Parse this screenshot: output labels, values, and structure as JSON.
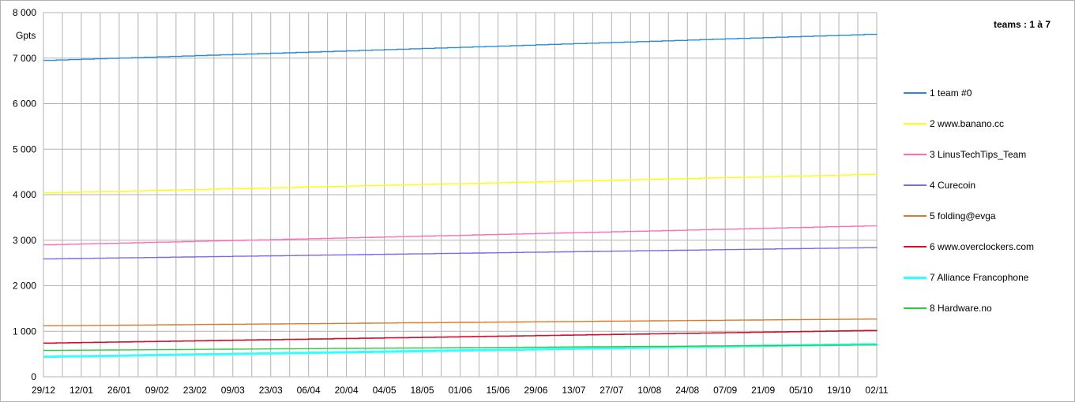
{
  "chart_data": {
    "type": "line",
    "unit_label": "Gpts",
    "range_label": "teams : 1 à 7",
    "x_ticks": [
      "29/12",
      "12/01",
      "26/01",
      "09/02",
      "23/02",
      "09/03",
      "23/03",
      "06/04",
      "20/04",
      "04/05",
      "18/05",
      "01/06",
      "15/06",
      "29/06",
      "13/07",
      "27/07",
      "10/08",
      "24/08",
      "07/09",
      "21/09",
      "05/10",
      "19/10",
      "02/11"
    ],
    "y_ticks": [
      "0",
      "1 000",
      "2 000",
      "3 000",
      "4 000",
      "5 000",
      "6 000",
      "7 000",
      "8 000"
    ],
    "ylim": [
      0,
      8000
    ],
    "grid": true,
    "legend_position": "right",
    "series": [
      {
        "name": "1 team #0",
        "color": "#2a8ad8",
        "width": 1.4,
        "values": [
          6950,
          7530
        ]
      },
      {
        "name": "2 www.banano.cc",
        "color": "#ffff00",
        "width": 1.4,
        "values": [
          4040,
          4450
        ]
      },
      {
        "name": "3 LinusTechTips_Team",
        "color": "#ff6eb4",
        "width": 1.4,
        "values": [
          2900,
          3320
        ]
      },
      {
        "name": "4 Curecoin",
        "color": "#7b68ee",
        "width": 1.4,
        "values": [
          2590,
          2840
        ]
      },
      {
        "name": "5 folding@evga",
        "color": "#e07828",
        "width": 1.4,
        "values": [
          1120,
          1270
        ]
      },
      {
        "name": "6 www.overclockers.com",
        "color": "#d0102c",
        "width": 1.6,
        "values": [
          740,
          1020
        ]
      },
      {
        "name": "7 Alliance Francophone",
        "color": "#33ffff",
        "width": 3,
        "values": [
          440,
          720
        ]
      },
      {
        "name": "8 Hardware.no",
        "color": "#2ecc40",
        "width": 1.4,
        "values": [
          580,
          700
        ]
      }
    ]
  }
}
